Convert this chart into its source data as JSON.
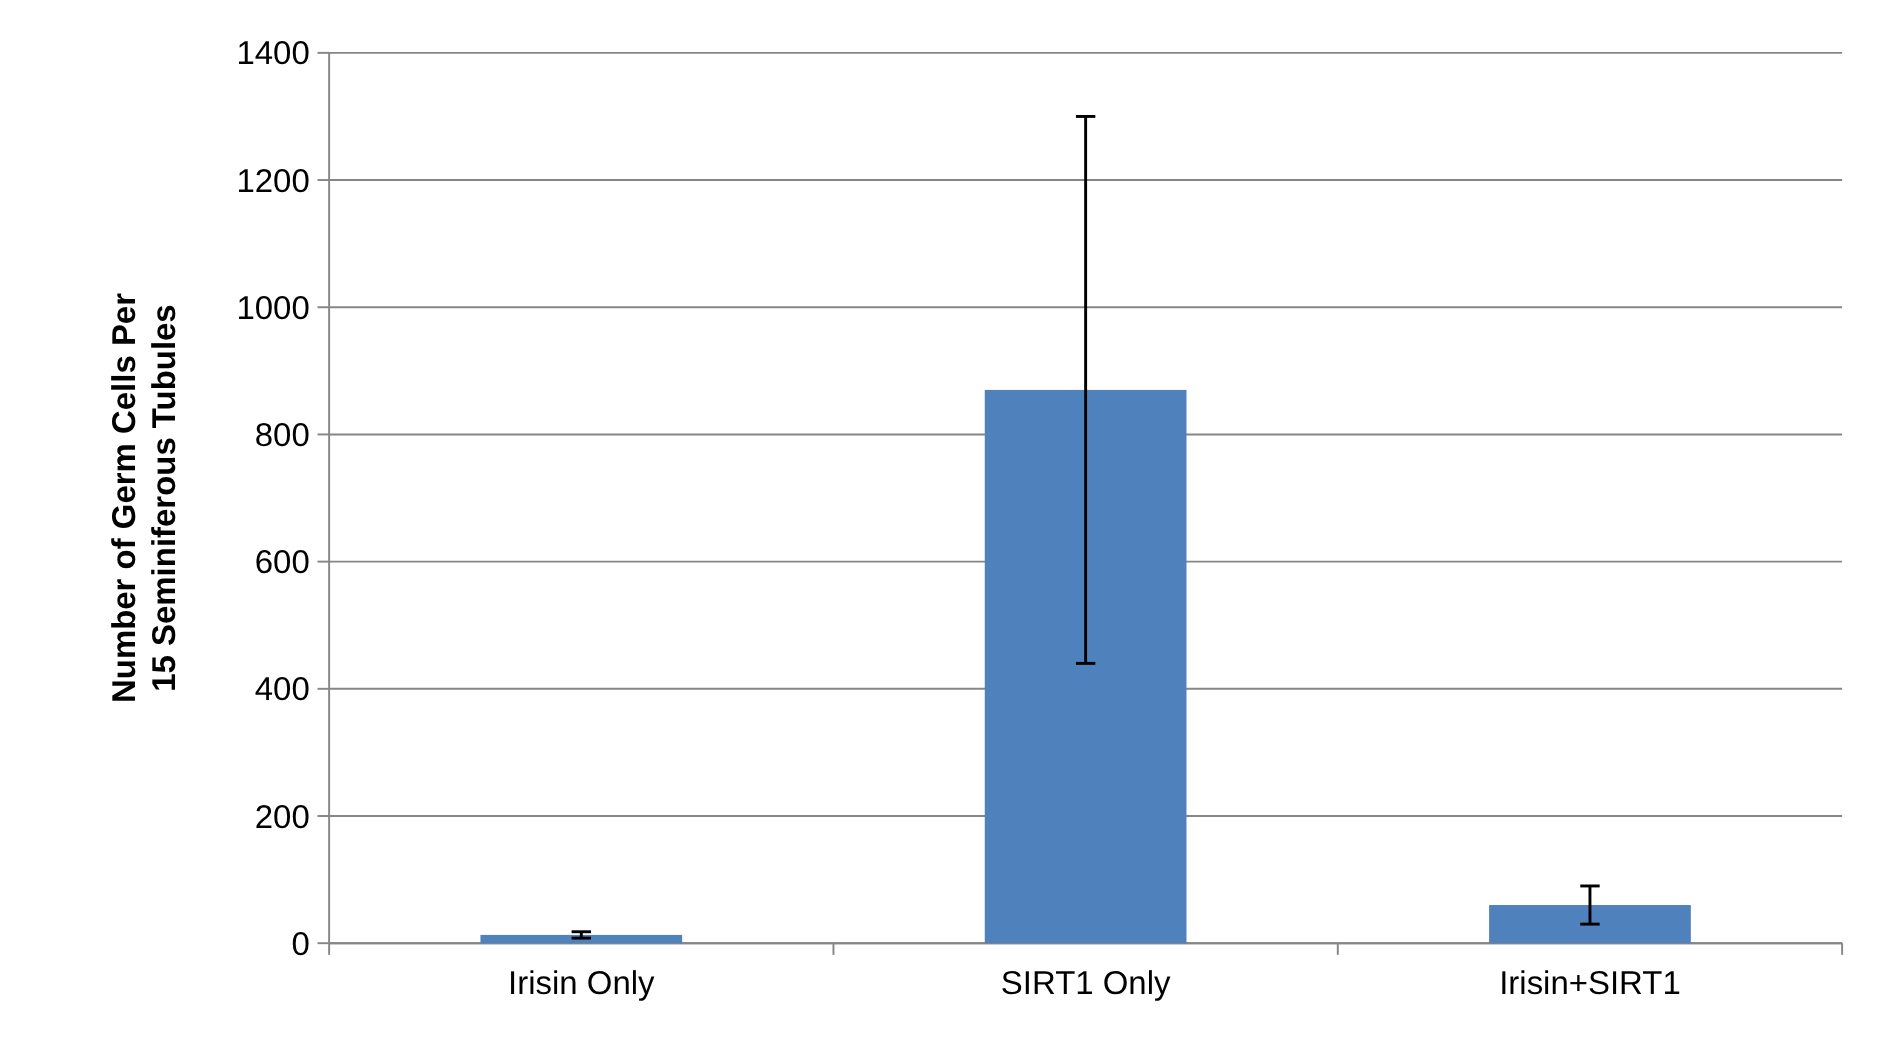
{
  "chart_data": {
    "type": "bar",
    "ylabel": "Number of Germ Cells Per 15 Seminiferous Tubules",
    "categories": [
      "Irisin Only",
      "SIRT1 Only",
      "Irisin+SIRT1"
    ],
    "values": [
      13,
      870,
      60
    ],
    "errors": [
      5,
      430,
      30
    ],
    "color": "#4f81bd",
    "ylim": [
      0,
      1400
    ],
    "yticks": [
      0,
      200,
      400,
      600,
      800,
      1000,
      1200,
      1400
    ],
    "grid": "y"
  }
}
